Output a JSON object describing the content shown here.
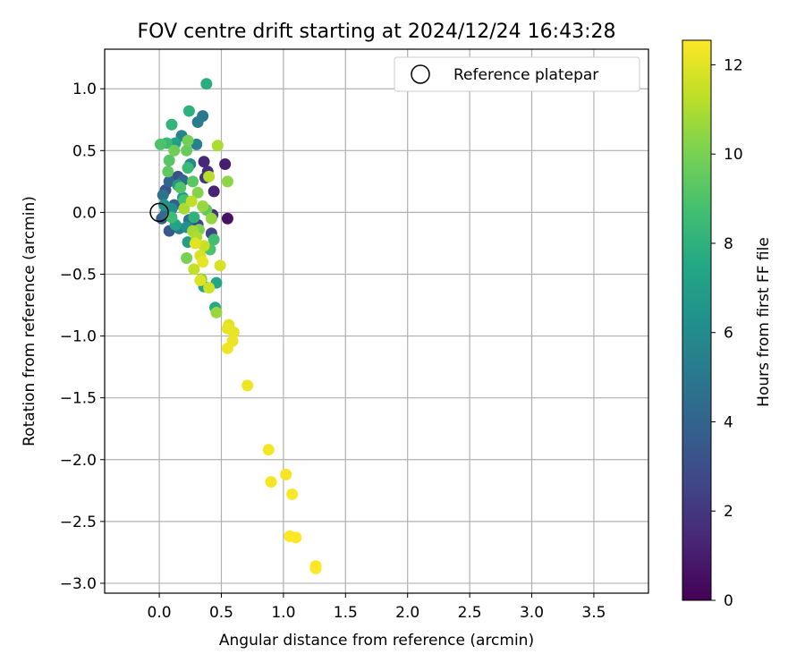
{
  "chart_data": {
    "type": "scatter",
    "title": "FOV centre drift starting at 2024/12/24 16:43:28",
    "xlabel": "Angular distance from reference (arcmin)",
    "ylabel": "Rotation from reference (arcmin)",
    "xlim": [
      -0.44,
      3.94
    ],
    "ylim": [
      -3.08,
      1.32
    ],
    "xticks": [
      0.0,
      0.5,
      1.0,
      1.5,
      2.0,
      2.5,
      3.0,
      3.5
    ],
    "xtick_labels": [
      "0.0",
      "0.5",
      "1.0",
      "1.5",
      "2.0",
      "2.5",
      "3.0",
      "3.5"
    ],
    "yticks": [
      1.0,
      0.5,
      0.0,
      -0.5,
      -1.0,
      -1.5,
      -2.0,
      -2.5,
      -3.0
    ],
    "ytick_labels": [
      "1.0",
      "0.5",
      "0.0",
      "−0.5",
      "−1.0",
      "−1.5",
      "−2.0",
      "−2.5",
      "−3.0"
    ],
    "grid": true,
    "legend": {
      "position": "top-right",
      "entries": [
        "Reference platepar"
      ]
    },
    "reference_point": {
      "x": 0.0,
      "y": 0.0
    },
    "colorbar": {
      "label": "Hours from first FF file",
      "colormap": "viridis",
      "range": [
        0,
        12.55
      ],
      "ticks": [
        0,
        2,
        4,
        6,
        8,
        10,
        12
      ],
      "tick_labels": [
        "0",
        "2",
        "4",
        "6",
        "8",
        "10",
        "12"
      ]
    },
    "points": [
      {
        "x": 0.55,
        "y": -0.05,
        "h": 0.6
      },
      {
        "x": 0.53,
        "y": 0.39,
        "h": 1.0
      },
      {
        "x": 0.44,
        "y": 0.17,
        "h": 1.2
      },
      {
        "x": 0.36,
        "y": 0.41,
        "h": 1.4
      },
      {
        "x": 0.39,
        "y": 0.33,
        "h": 1.6
      },
      {
        "x": 0.43,
        "y": -0.02,
        "h": 1.8
      },
      {
        "x": 0.37,
        "y": 0.28,
        "h": 2.0
      },
      {
        "x": 0.31,
        "y": -0.1,
        "h": 2.4
      },
      {
        "x": 0.42,
        "y": -0.17,
        "h": 2.6
      },
      {
        "x": 0.15,
        "y": 0.29,
        "h": 3.0
      },
      {
        "x": 0.05,
        "y": 0.18,
        "h": 3.2
      },
      {
        "x": 0.08,
        "y": -0.15,
        "h": 3.4
      },
      {
        "x": 0.02,
        "y": -0.05,
        "h": 3.6
      },
      {
        "x": 0.12,
        "y": 0.06,
        "h": 3.8
      },
      {
        "x": 0.08,
        "y": 0.25,
        "h": 4.0
      },
      {
        "x": 0.19,
        "y": 0.26,
        "h": 4.2
      },
      {
        "x": 0.05,
        "y": -0.01,
        "h": 4.4
      },
      {
        "x": 0.24,
        "y": -0.06,
        "h": 4.6
      },
      {
        "x": 0.35,
        "y": 0.78,
        "h": 5.0
      },
      {
        "x": 0.31,
        "y": 0.73,
        "h": 5.2
      },
      {
        "x": 0.3,
        "y": 0.55,
        "h": 5.4
      },
      {
        "x": 0.18,
        "y": 0.62,
        "h": 5.6
      },
      {
        "x": 0.25,
        "y": 0.39,
        "h": 5.8
      },
      {
        "x": 0.1,
        "y": 0.03,
        "h": 6.0
      },
      {
        "x": 0.22,
        "y": -0.12,
        "h": 6.2
      },
      {
        "x": 0.04,
        "y": 0.06,
        "h": 6.4
      },
      {
        "x": 0.15,
        "y": 0.22,
        "h": 6.6
      },
      {
        "x": 0.23,
        "y": -0.24,
        "h": 7.0
      },
      {
        "x": 0.36,
        "y": -0.6,
        "h": 7.2
      },
      {
        "x": 0.46,
        "y": -0.57,
        "h": 7.4
      },
      {
        "x": 0.45,
        "y": -0.77,
        "h": 7.6
      },
      {
        "x": 0.38,
        "y": 1.04,
        "h": 7.8
      },
      {
        "x": 0.24,
        "y": 0.82,
        "h": 8.0
      },
      {
        "x": 0.1,
        "y": 0.71,
        "h": 8.2
      },
      {
        "x": 0.06,
        "y": 0.56,
        "h": 8.4
      },
      {
        "x": 0.1,
        "y": -0.04,
        "h": 8.6
      },
      {
        "x": 0.2,
        "y": 0.1,
        "h": 8.8
      },
      {
        "x": 0.01,
        "y": 0.55,
        "h": 9.0
      },
      {
        "x": 0.08,
        "y": 0.42,
        "h": 9.2
      },
      {
        "x": 0.07,
        "y": 0.33,
        "h": 9.4
      },
      {
        "x": 0.22,
        "y": 0.5,
        "h": 9.6
      },
      {
        "x": 0.12,
        "y": 0.5,
        "h": 9.8
      },
      {
        "x": 0.22,
        "y": -0.37,
        "h": 10.0
      },
      {
        "x": 0.34,
        "y": -0.54,
        "h": 10.2
      },
      {
        "x": 0.55,
        "y": 0.25,
        "h": 10.4
      },
      {
        "x": 0.46,
        "y": -0.81,
        "h": 10.6
      },
      {
        "x": 0.47,
        "y": 0.54,
        "h": 11.0
      },
      {
        "x": 0.4,
        "y": 0.29,
        "h": 11.2
      },
      {
        "x": 0.28,
        "y": -0.46,
        "h": 11.4
      },
      {
        "x": 0.4,
        "y": -0.61,
        "h": 11.6
      },
      {
        "x": 0.49,
        "y": -0.43,
        "h": 11.8
      },
      {
        "x": 0.56,
        "y": -0.91,
        "h": 12.0
      },
      {
        "x": 0.6,
        "y": -0.97,
        "h": 12.1
      },
      {
        "x": 0.55,
        "y": -0.94,
        "h": 12.15
      },
      {
        "x": 0.59,
        "y": -1.04,
        "h": 12.2
      },
      {
        "x": 0.55,
        "y": -1.1,
        "h": 12.25
      },
      {
        "x": 0.71,
        "y": -1.4,
        "h": 12.3
      },
      {
        "x": 0.88,
        "y": -1.92,
        "h": 12.35
      },
      {
        "x": 0.9,
        "y": -2.18,
        "h": 12.4
      },
      {
        "x": 1.02,
        "y": -2.12,
        "h": 12.45
      },
      {
        "x": 1.07,
        "y": -2.28,
        "h": 12.5
      },
      {
        "x": 1.05,
        "y": -2.62,
        "h": 12.5
      },
      {
        "x": 1.1,
        "y": -2.63,
        "h": 12.55
      },
      {
        "x": 1.26,
        "y": -2.86,
        "h": 12.55
      },
      {
        "x": 1.26,
        "y": -2.88,
        "h": 12.55
      },
      {
        "x": 0.3,
        "y": -0.2,
        "h": 11.0
      },
      {
        "x": 0.36,
        "y": -0.27,
        "h": 11.5
      },
      {
        "x": 0.33,
        "y": -0.35,
        "h": 11.8
      },
      {
        "x": 0.27,
        "y": -0.15,
        "h": 10.8
      },
      {
        "x": 0.42,
        "y": -0.05,
        "h": 10.5
      },
      {
        "x": 0.38,
        "y": 0.02,
        "h": 9.5
      },
      {
        "x": 0.31,
        "y": 0.16,
        "h": 10.2
      },
      {
        "x": 0.26,
        "y": 0.09,
        "h": 11.3
      },
      {
        "x": 0.2,
        "y": 0.03,
        "h": 10.9
      },
      {
        "x": 0.35,
        "y": -0.4,
        "h": 12.1
      },
      {
        "x": 0.33,
        "y": -0.55,
        "h": 11.9
      },
      {
        "x": 0.41,
        "y": -0.3,
        "h": 9.0
      },
      {
        "x": 0.17,
        "y": 0.2,
        "h": 9.1
      },
      {
        "x": 0.19,
        "y": 0.12,
        "h": 6.8
      },
      {
        "x": 0.27,
        "y": 0.25,
        "h": 9.3
      },
      {
        "x": 0.23,
        "y": 0.36,
        "h": 8.5
      },
      {
        "x": 0.13,
        "y": -0.1,
        "h": 7.3
      },
      {
        "x": 0.28,
        "y": -0.04,
        "h": 8.1
      },
      {
        "x": 0.35,
        "y": 0.05,
        "h": 10.6
      },
      {
        "x": 0.44,
        "y": -0.22,
        "h": 8.7
      },
      {
        "x": 0.23,
        "y": 0.58,
        "h": 9.9
      },
      {
        "x": 0.13,
        "y": 0.56,
        "h": 7.1
      },
      {
        "x": 0.03,
        "y": 0.14,
        "h": 4.8
      },
      {
        "x": 0.16,
        "y": -0.13,
        "h": 5.3
      },
      {
        "x": 0.29,
        "y": -0.25,
        "h": 12.0
      },
      {
        "x": 0.32,
        "y": -0.14,
        "h": 10.1
      }
    ]
  }
}
